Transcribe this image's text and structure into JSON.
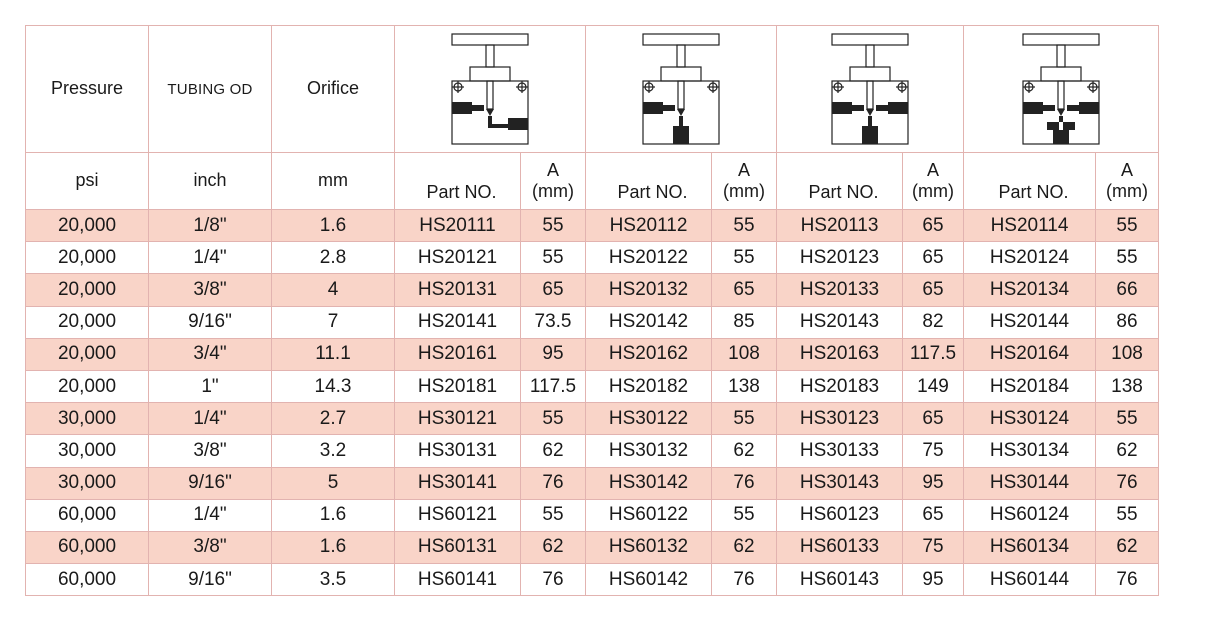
{
  "header": {
    "pressure": "Pressure",
    "tubing_od": "TUBING OD",
    "orifice": "Orifice",
    "diagram_icons": [
      "valve-diagram-1-icon",
      "valve-diagram-2-icon",
      "valve-diagram-3-icon",
      "valve-diagram-4-icon"
    ]
  },
  "units": {
    "psi": "psi",
    "inch": "inch",
    "mm": "mm",
    "part_no": "Part NO.",
    "a_top": "A",
    "a_bottom": "(mm)"
  },
  "rows": [
    {
      "pressure": "20,000",
      "tubing": "1/8\"",
      "orifice": "1.6",
      "p1": "HS20111",
      "a1": "55",
      "p2": "HS20112",
      "a2": "55",
      "p3": "HS20113",
      "a3": "65",
      "p4": "HS20114",
      "a4": "55"
    },
    {
      "pressure": "20,000",
      "tubing": "1/4\"",
      "orifice": "2.8",
      "p1": "HS20121",
      "a1": "55",
      "p2": "HS20122",
      "a2": "55",
      "p3": "HS20123",
      "a3": "65",
      "p4": "HS20124",
      "a4": "55"
    },
    {
      "pressure": "20,000",
      "tubing": "3/8\"",
      "orifice": "4",
      "p1": "HS20131",
      "a1": "65",
      "p2": "HS20132",
      "a2": "65",
      "p3": "HS20133",
      "a3": "65",
      "p4": "HS20134",
      "a4": "66"
    },
    {
      "pressure": "20,000",
      "tubing": "9/16\"",
      "orifice": "7",
      "p1": "HS20141",
      "a1": "73.5",
      "p2": "HS20142",
      "a2": "85",
      "p3": "HS20143",
      "a3": "82",
      "p4": "HS20144",
      "a4": "86"
    },
    {
      "pressure": "20,000",
      "tubing": "3/4\"",
      "orifice": "11.1",
      "p1": "HS20161",
      "a1": "95",
      "p2": "HS20162",
      "a2": "108",
      "p3": "HS20163",
      "a3": "117.5",
      "p4": "HS20164",
      "a4": "108"
    },
    {
      "pressure": "20,000",
      "tubing": "1\"",
      "orifice": "14.3",
      "p1": "HS20181",
      "a1": "117.5",
      "p2": "HS20182",
      "a2": "138",
      "p3": "HS20183",
      "a3": "149",
      "p4": "HS20184",
      "a4": "138"
    },
    {
      "pressure": "30,000",
      "tubing": "1/4\"",
      "orifice": "2.7",
      "p1": "HS30121",
      "a1": "55",
      "p2": "HS30122",
      "a2": "55",
      "p3": "HS30123",
      "a3": "65",
      "p4": "HS30124",
      "a4": "55"
    },
    {
      "pressure": "30,000",
      "tubing": "3/8\"",
      "orifice": "3.2",
      "p1": "HS30131",
      "a1": "62",
      "p2": "HS30132",
      "a2": "62",
      "p3": "HS30133",
      "a3": "75",
      "p4": "HS30134",
      "a4": "62"
    },
    {
      "pressure": "30,000",
      "tubing": "9/16\"",
      "orifice": "5",
      "p1": "HS30141",
      "a1": "76",
      "p2": "HS30142",
      "a2": "76",
      "p3": "HS30143",
      "a3": "95",
      "p4": "HS30144",
      "a4": "76"
    },
    {
      "pressure": "60,000",
      "tubing": "1/4\"",
      "orifice": "1.6",
      "p1": "HS60121",
      "a1": "55",
      "p2": "HS60122",
      "a2": "55",
      "p3": "HS60123",
      "a3": "65",
      "p4": "HS60124",
      "a4": "55"
    },
    {
      "pressure": "60,000",
      "tubing": "3/8\"",
      "orifice": "1.6",
      "p1": "HS60131",
      "a1": "62",
      "p2": "HS60132",
      "a2": "62",
      "p3": "HS60133",
      "a3": "75",
      "p4": "HS60134",
      "a4": "62"
    },
    {
      "pressure": "60,000",
      "tubing": "9/16\"",
      "orifice": "3.5",
      "p1": "HS60141",
      "a1": "76",
      "p2": "HS60142",
      "a2": "76",
      "p3": "HS60143",
      "a3": "95",
      "p4": "HS60144",
      "a4": "76"
    }
  ],
  "shaded_rows": [
    0,
    2,
    4,
    6,
    8,
    10
  ],
  "colors": {
    "shade": "#f9d4c8",
    "border": "#e2b3b0",
    "text": "#1a1a1a"
  }
}
